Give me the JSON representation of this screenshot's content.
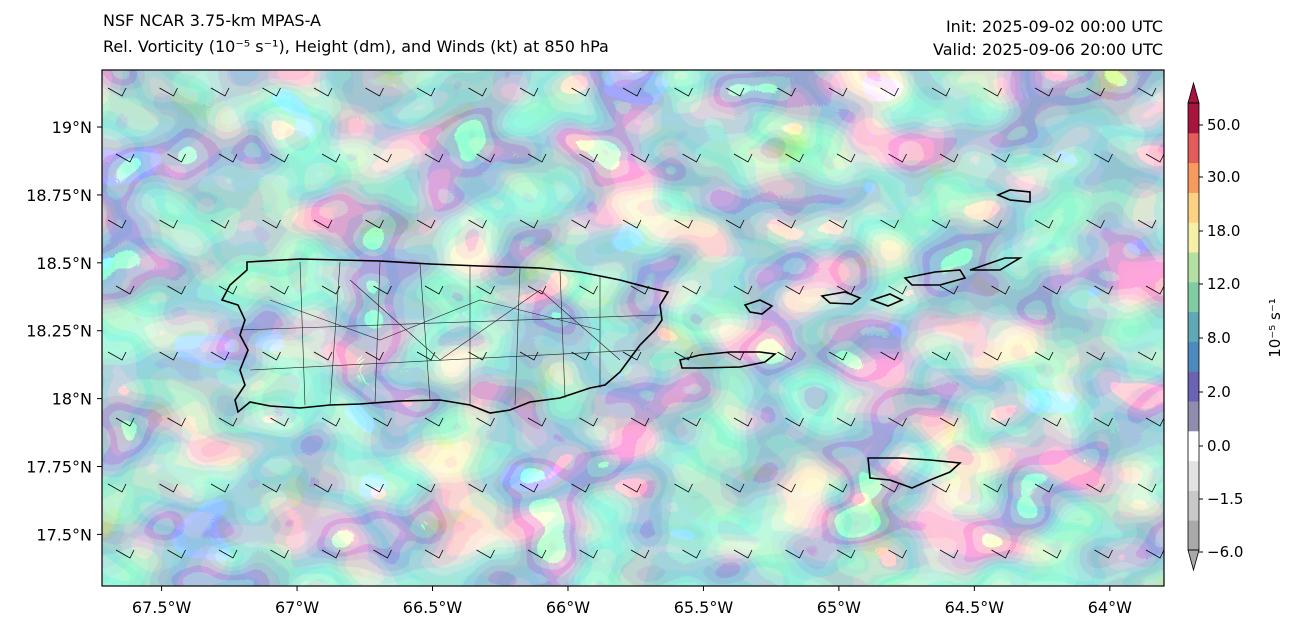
{
  "header": {
    "model_line": "NSF NCAR 3.75-km MPAS-A",
    "field_line": "Rel. Vorticity (10⁻⁵ s⁻¹), Height (dm), and Winds (kt) at 850 hPa",
    "init_line": "Init: 2025-09-02 00:00 UTC",
    "valid_line": "Valid: 2025-09-06 20:00 UTC"
  },
  "map": {
    "lon_range": [
      -67.72,
      -63.8
    ],
    "lat_range": [
      17.31,
      19.21
    ],
    "lon_ticks": [
      {
        "value": -67.5,
        "label": "67.5°W"
      },
      {
        "value": -67.0,
        "label": "67°W"
      },
      {
        "value": -66.5,
        "label": "66.5°W"
      },
      {
        "value": -66.0,
        "label": "66°W"
      },
      {
        "value": -65.5,
        "label": "65.5°W"
      },
      {
        "value": -65.0,
        "label": "65°W"
      },
      {
        "value": -64.5,
        "label": "64.5°W"
      },
      {
        "value": -64.0,
        "label": "64°W"
      }
    ],
    "lat_ticks": [
      {
        "value": 19.0,
        "label": "19°N"
      },
      {
        "value": 18.75,
        "label": "18.75°N"
      },
      {
        "value": 18.5,
        "label": "18.5°N"
      },
      {
        "value": 18.25,
        "label": "18.25°N"
      },
      {
        "value": 18.0,
        "label": "18°N"
      },
      {
        "value": 17.75,
        "label": "17.75°N"
      },
      {
        "value": 17.5,
        "label": "17.5°N"
      }
    ],
    "wind_barb_direction": "east-southeast"
  },
  "colorbar": {
    "units_label": "10⁻⁵ s⁻¹",
    "extend": "both",
    "tick_labels": [
      "50.0",
      "30.0",
      "18.0",
      "12.0",
      "8.0",
      "2.0",
      "0.0",
      "−1.5",
      "−6.0"
    ],
    "colors_bottom_to_top": [
      "#a9a9a9",
      "#c8c8c8",
      "#e3e3e3",
      "#ffffff",
      "#908caf",
      "#6a62b3",
      "#4d8bbf",
      "#5fa8b6",
      "#82cca5",
      "#b4e0a3",
      "#f4f1a6",
      "#fcd181",
      "#f89a5c",
      "#e45b5c",
      "#a7153f"
    ]
  }
}
